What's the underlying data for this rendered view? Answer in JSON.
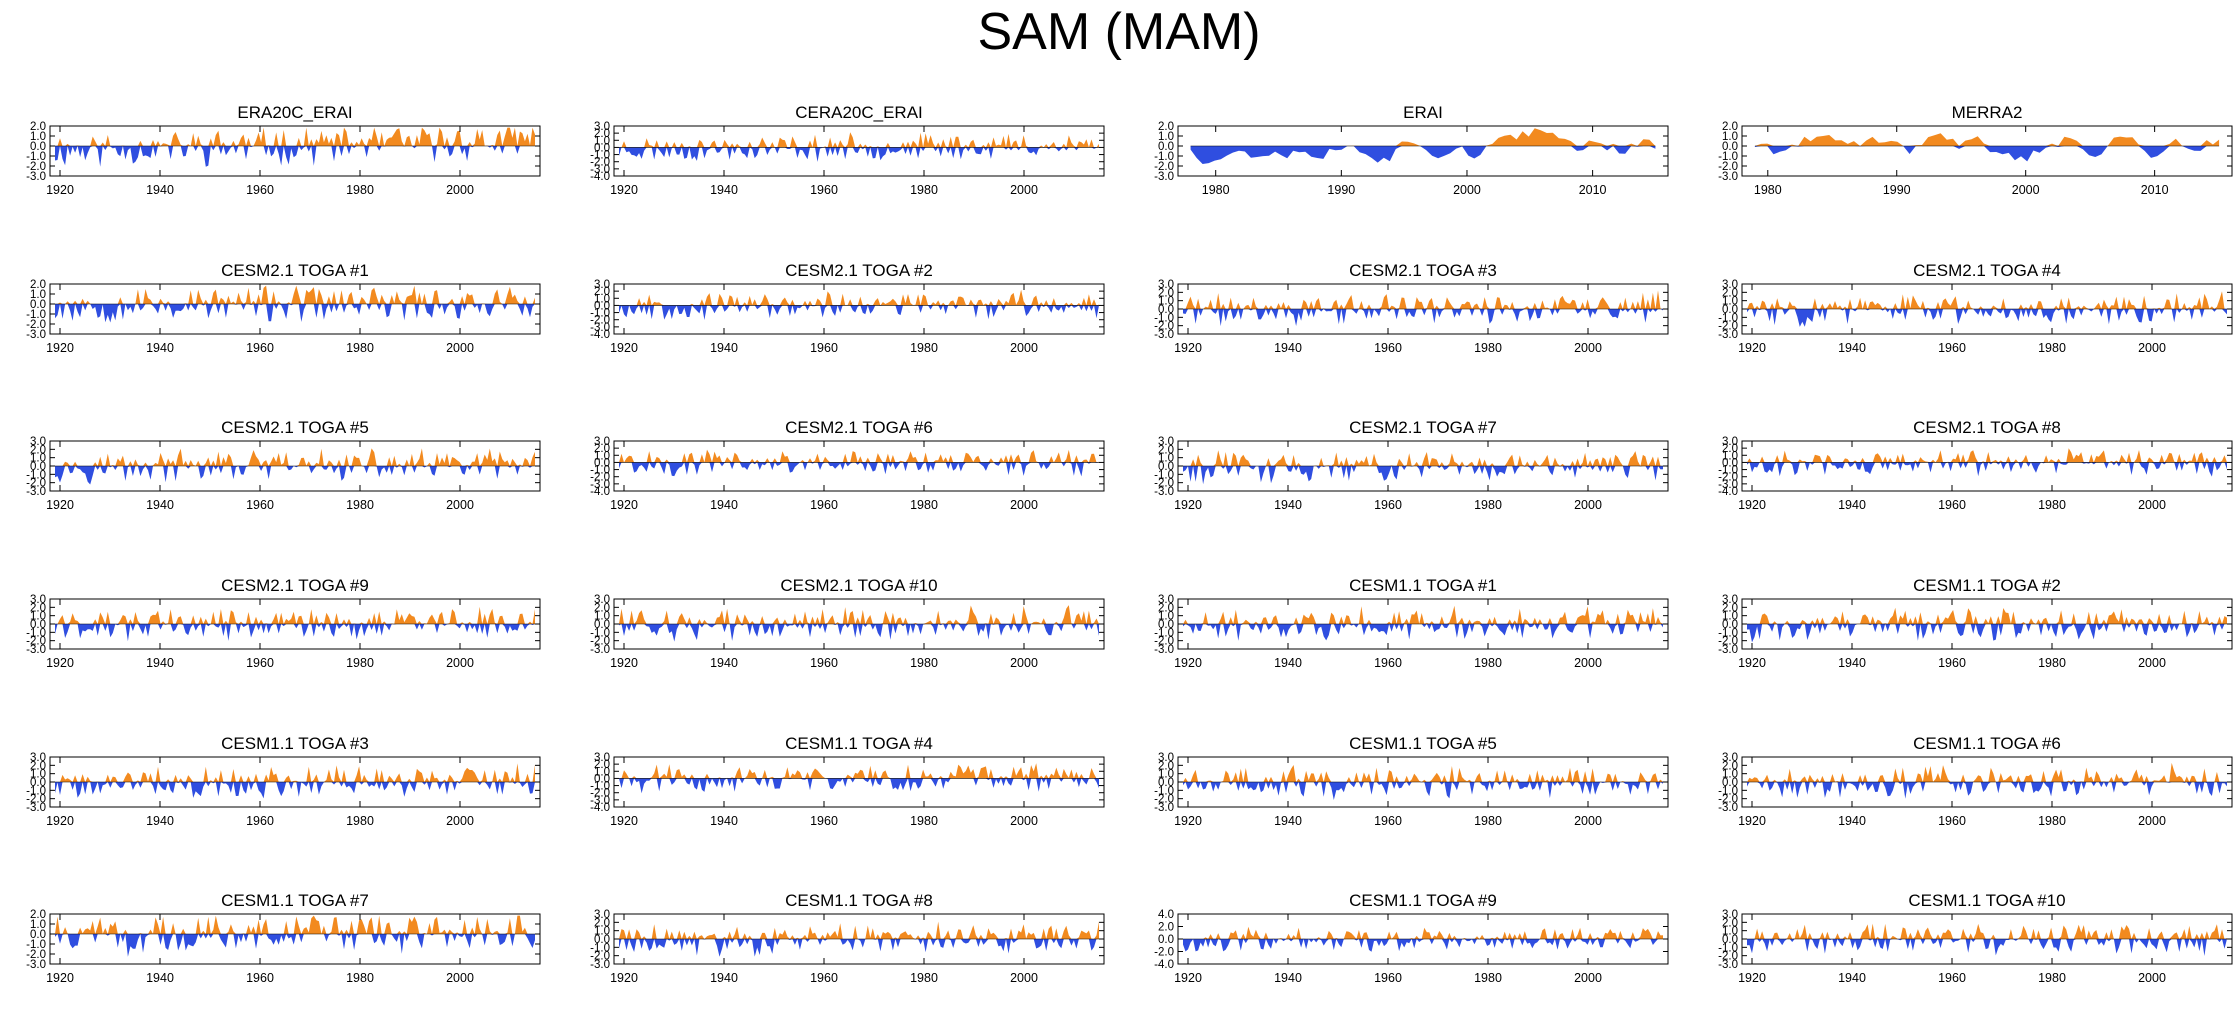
{
  "title": "SAM (MAM)",
  "colors": {
    "positive": "#f28a1f",
    "negative": "#2f4ee0",
    "axis": "#000000"
  },
  "chart_data": [
    {
      "type": "area",
      "title": "ERA20C_ERAI",
      "x_range": [
        1918,
        2016
      ],
      "ylim": [
        -3,
        2
      ],
      "yticks": [
        "2.0",
        "1.0",
        "0.0",
        "-1.0",
        "-2.0",
        "-3.0"
      ],
      "xticks": [
        "1920",
        "1940",
        "1960",
        "1980",
        "2000"
      ],
      "seed": 11,
      "trend": 0.9
    },
    {
      "type": "area",
      "title": "CERA20C_ERAI",
      "x_range": [
        1918,
        2016
      ],
      "ylim": [
        -4,
        3
      ],
      "yticks": [
        "3.0",
        "2.0",
        "1.0",
        "0.0",
        "-1.0",
        "-2.0",
        "-3.0",
        "-4.0"
      ],
      "xticks": [
        "1920",
        "1940",
        "1960",
        "1980",
        "2000"
      ],
      "seed": 23,
      "trend": 0.6
    },
    {
      "type": "area",
      "title": "ERAI",
      "x_range": [
        1977,
        2016
      ],
      "ylim": [
        -3,
        2
      ],
      "yticks": [
        "2.0",
        "1.0",
        "0.0",
        "-1.0",
        "-2.0",
        "-3.0"
      ],
      "xticks": [
        "1980",
        "1990",
        "2000",
        "2010"
      ],
      "seed": 37,
      "trend": 0.2,
      "smooth": true
    },
    {
      "type": "area",
      "title": "MERRA2",
      "x_range": [
        1978,
        2016
      ],
      "ylim": [
        -3,
        2
      ],
      "yticks": [
        "2.0",
        "1.0",
        "0.0",
        "-1.0",
        "-2.0",
        "-3.0"
      ],
      "xticks": [
        "1980",
        "1990",
        "2000",
        "2010"
      ],
      "seed": 41,
      "trend": 0.2,
      "smooth": true
    },
    {
      "type": "area",
      "title": "CESM2.1 TOGA #1",
      "x_range": [
        1918,
        2016
      ],
      "ylim": [
        -3,
        2
      ],
      "yticks": [
        "2.0",
        "1.0",
        "0.0",
        "-1.0",
        "-2.0",
        "-3.0"
      ],
      "xticks": [
        "1920",
        "1940",
        "1960",
        "1980",
        "2000"
      ],
      "seed": 53,
      "trend": 0.3
    },
    {
      "type": "area",
      "title": "CESM2.1 TOGA #2",
      "x_range": [
        1918,
        2016
      ],
      "ylim": [
        -4,
        3
      ],
      "yticks": [
        "3.0",
        "2.0",
        "1.0",
        "0.0",
        "-1.0",
        "-2.0",
        "-3.0",
        "-4.0"
      ],
      "xticks": [
        "1920",
        "1940",
        "1960",
        "1980",
        "2000"
      ],
      "seed": 67,
      "trend": 0.4
    },
    {
      "type": "area",
      "title": "CESM2.1 TOGA #3",
      "x_range": [
        1918,
        2016
      ],
      "ylim": [
        -3,
        3
      ],
      "yticks": [
        "3.0",
        "2.0",
        "1.0",
        "0.0",
        "-1.0",
        "-2.0",
        "-3.0"
      ],
      "xticks": [
        "1920",
        "1940",
        "1960",
        "1980",
        "2000"
      ],
      "seed": 71,
      "trend": 0.3
    },
    {
      "type": "area",
      "title": "CESM2.1 TOGA #4",
      "x_range": [
        1918,
        2016
      ],
      "ylim": [
        -3,
        3
      ],
      "yticks": [
        "3.0",
        "2.0",
        "1.0",
        "0.0",
        "-1.0",
        "-2.0",
        "-3.0"
      ],
      "xticks": [
        "1920",
        "1940",
        "1960",
        "1980",
        "2000"
      ],
      "seed": 83,
      "trend": 0.3
    },
    {
      "type": "area",
      "title": "CESM2.1 TOGA #5",
      "x_range": [
        1918,
        2016
      ],
      "ylim": [
        -3,
        3
      ],
      "yticks": [
        "3.0",
        "2.0",
        "1.0",
        "0.0",
        "-1.0",
        "-2.0",
        "-3.0"
      ],
      "xticks": [
        "1920",
        "1940",
        "1960",
        "1980",
        "2000"
      ],
      "seed": 97,
      "trend": 0.2
    },
    {
      "type": "area",
      "title": "CESM2.1 TOGA #6",
      "x_range": [
        1918,
        2016
      ],
      "ylim": [
        -4,
        3
      ],
      "yticks": [
        "3.0",
        "2.0",
        "1.0",
        "0.0",
        "-1.0",
        "-2.0",
        "-3.0",
        "-4.0"
      ],
      "xticks": [
        "1920",
        "1940",
        "1960",
        "1980",
        "2000"
      ],
      "seed": 101,
      "trend": 0.2
    },
    {
      "type": "area",
      "title": "CESM2.1 TOGA #7",
      "x_range": [
        1918,
        2016
      ],
      "ylim": [
        -3,
        3
      ],
      "yticks": [
        "3.0",
        "2.0",
        "1.0",
        "0.0",
        "-1.0",
        "-2.0",
        "-3.0"
      ],
      "xticks": [
        "1920",
        "1940",
        "1960",
        "1980",
        "2000"
      ],
      "seed": 113,
      "trend": 0.2
    },
    {
      "type": "area",
      "title": "CESM2.1 TOGA #8",
      "x_range": [
        1918,
        2016
      ],
      "ylim": [
        -4,
        3
      ],
      "yticks": [
        "3.0",
        "2.0",
        "1.0",
        "0.0",
        "-1.0",
        "-2.0",
        "-3.0",
        "-4.0"
      ],
      "xticks": [
        "1920",
        "1940",
        "1960",
        "1980",
        "2000"
      ],
      "seed": 127,
      "trend": 0.2
    },
    {
      "type": "area",
      "title": "CESM2.1 TOGA #9",
      "x_range": [
        1918,
        2016
      ],
      "ylim": [
        -3,
        3
      ],
      "yticks": [
        "3.0",
        "2.0",
        "1.0",
        "0.0",
        "-1.0",
        "-2.0",
        "-3.0"
      ],
      "xticks": [
        "1920",
        "1940",
        "1960",
        "1980",
        "2000"
      ],
      "seed": 131,
      "trend": 0.2
    },
    {
      "type": "area",
      "title": "CESM2.1 TOGA #10",
      "x_range": [
        1918,
        2016
      ],
      "ylim": [
        -3,
        3
      ],
      "yticks": [
        "3.0",
        "2.0",
        "1.0",
        "0.0",
        "-1.0",
        "-2.0",
        "-3.0"
      ],
      "xticks": [
        "1920",
        "1940",
        "1960",
        "1980",
        "2000"
      ],
      "seed": 139,
      "trend": 0.2
    },
    {
      "type": "area",
      "title": "CESM1.1 TOGA #1",
      "x_range": [
        1918,
        2016
      ],
      "ylim": [
        -3,
        3
      ],
      "yticks": [
        "3.0",
        "2.0",
        "1.0",
        "0.0",
        "-1.0",
        "-2.0",
        "-3.0"
      ],
      "xticks": [
        "1920",
        "1940",
        "1960",
        "1980",
        "2000"
      ],
      "seed": 149,
      "trend": 0.2
    },
    {
      "type": "area",
      "title": "CESM1.1 TOGA #2",
      "x_range": [
        1918,
        2016
      ],
      "ylim": [
        -3,
        3
      ],
      "yticks": [
        "3.0",
        "2.0",
        "1.0",
        "0.0",
        "-1.0",
        "-2.0",
        "-3.0"
      ],
      "xticks": [
        "1920",
        "1940",
        "1960",
        "1980",
        "2000"
      ],
      "seed": 157,
      "trend": 0.2
    },
    {
      "type": "area",
      "title": "CESM1.1 TOGA #3",
      "x_range": [
        1918,
        2016
      ],
      "ylim": [
        -3,
        3
      ],
      "yticks": [
        "3.0",
        "2.0",
        "1.0",
        "0.0",
        "-1.0",
        "-2.0",
        "-3.0"
      ],
      "xticks": [
        "1920",
        "1940",
        "1960",
        "1980",
        "2000"
      ],
      "seed": 163,
      "trend": 0.3
    },
    {
      "type": "area",
      "title": "CESM1.1 TOGA #4",
      "x_range": [
        1918,
        2016
      ],
      "ylim": [
        -4,
        3
      ],
      "yticks": [
        "3.0",
        "2.0",
        "1.0",
        "0.0",
        "-1.0",
        "-2.0",
        "-3.0",
        "-4.0"
      ],
      "xticks": [
        "1920",
        "1940",
        "1960",
        "1980",
        "2000"
      ],
      "seed": 173,
      "trend": 0.2
    },
    {
      "type": "area",
      "title": "CESM1.1 TOGA #5",
      "x_range": [
        1918,
        2016
      ],
      "ylim": [
        -3,
        3
      ],
      "yticks": [
        "3.0",
        "2.0",
        "1.0",
        "0.0",
        "-1.0",
        "-2.0",
        "-3.0"
      ],
      "xticks": [
        "1920",
        "1940",
        "1960",
        "1980",
        "2000"
      ],
      "seed": 181,
      "trend": 0.2
    },
    {
      "type": "area",
      "title": "CESM1.1 TOGA #6",
      "x_range": [
        1918,
        2016
      ],
      "ylim": [
        -3,
        3
      ],
      "yticks": [
        "3.0",
        "2.0",
        "1.0",
        "0.0",
        "-1.0",
        "-2.0",
        "-3.0"
      ],
      "xticks": [
        "1920",
        "1940",
        "1960",
        "1980",
        "2000"
      ],
      "seed": 191,
      "trend": 0.3
    },
    {
      "type": "area",
      "title": "CESM1.1 TOGA #7",
      "x_range": [
        1918,
        2016
      ],
      "ylim": [
        -3,
        2
      ],
      "yticks": [
        "2.0",
        "1.0",
        "0.0",
        "-1.0",
        "-2.0",
        "-3.0"
      ],
      "xticks": [
        "1920",
        "1940",
        "1960",
        "1980",
        "2000"
      ],
      "seed": 193,
      "trend": 0.3
    },
    {
      "type": "area",
      "title": "CESM1.1 TOGA #8",
      "x_range": [
        1918,
        2016
      ],
      "ylim": [
        -3,
        3
      ],
      "yticks": [
        "3.0",
        "2.0",
        "1.0",
        "0.0",
        "-1.0",
        "-2.0",
        "-3.0"
      ],
      "xticks": [
        "1920",
        "1940",
        "1960",
        "1980",
        "2000"
      ],
      "seed": 197,
      "trend": 0.2
    },
    {
      "type": "area",
      "title": "CESM1.1 TOGA #9",
      "x_range": [
        1918,
        2016
      ],
      "ylim": [
        -4,
        4
      ],
      "yticks": [
        "4.0",
        "2.0",
        "0.0",
        "-2.0",
        "-4.0"
      ],
      "xticks": [
        "1920",
        "1940",
        "1960",
        "1980",
        "2000"
      ],
      "seed": 199,
      "trend": 0.2
    },
    {
      "type": "area",
      "title": "CESM1.1 TOGA #10",
      "x_range": [
        1918,
        2016
      ],
      "ylim": [
        -3,
        3
      ],
      "yticks": [
        "3.0",
        "2.0",
        "1.0",
        "0.0",
        "-1.0",
        "-2.0",
        "-3.0"
      ],
      "xticks": [
        "1920",
        "1940",
        "1960",
        "1980",
        "2000"
      ],
      "seed": 211,
      "trend": 0.2
    }
  ]
}
